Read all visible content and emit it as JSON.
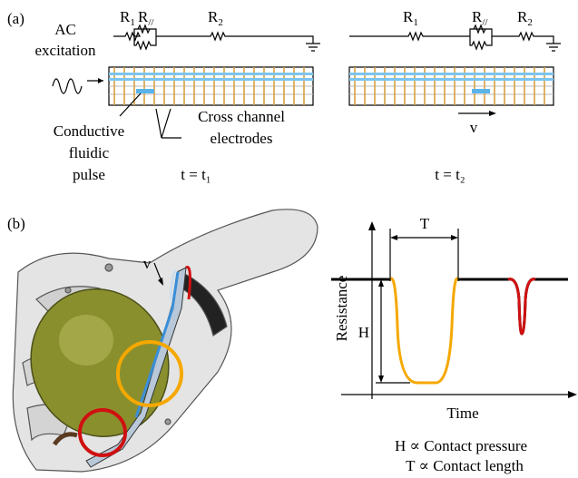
{
  "panel_a": {
    "label": "(a)",
    "excitation": [
      "AC",
      "excitation"
    ],
    "left_resistors": [
      {
        "base": "R",
        "sub": "1"
      },
      {
        "base": "R",
        "sub": "//"
      },
      {
        "base": "R",
        "sub": "2"
      }
    ],
    "right_resistors": [
      {
        "base": "R",
        "sub": "1"
      },
      {
        "base": "R",
        "sub": "//"
      },
      {
        "base": "R",
        "sub": "2"
      }
    ],
    "pulse_label": [
      "Conductive",
      "fluidic",
      "pulse"
    ],
    "electrode_label": [
      "Cross channel",
      "electrodes"
    ],
    "time_left": "t = t₁",
    "time_right": "t = t₂",
    "velocity": "v"
  },
  "panel_b": {
    "label": "(b)",
    "velocity": "v",
    "graph": {
      "width_label": "T",
      "height_label": "H",
      "y_axis": "Resistance",
      "x_axis": "Time"
    },
    "captions": [
      "H ∝ Contact pressure",
      "T ∝ Contact length"
    ]
  }
}
